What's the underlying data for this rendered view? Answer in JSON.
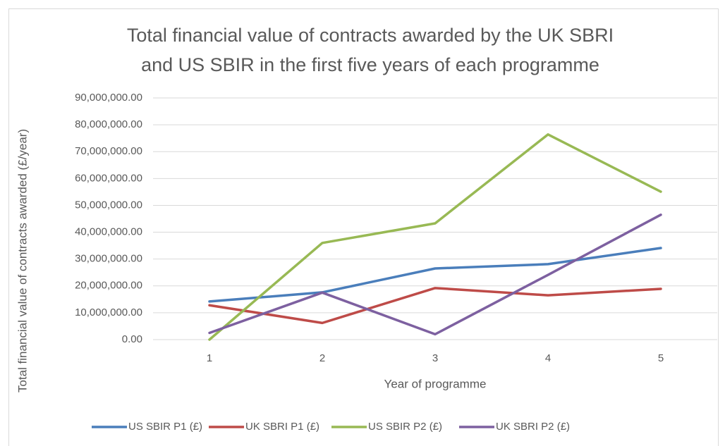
{
  "chart_data": {
    "type": "line",
    "title": [
      "Total financial value of contracts awarded by the UK SBRI",
      "and US SBIR in the first five years of each programme"
    ],
    "x_label": "Year of programme",
    "y_label": "Total financial value of contracts awarded (£/year)",
    "categories": [
      "1",
      "2",
      "3",
      "4",
      "5"
    ],
    "series": [
      {
        "name": "US SBIR P1 (£)",
        "color": "#4a7ebb",
        "values": [
          14200000,
          17600000,
          26500000,
          28100000,
          34100000
        ]
      },
      {
        "name": "UK SBRI P1 (£)",
        "color": "#be4b48",
        "values": [
          12800000,
          6200000,
          19200000,
          16500000,
          18900000
        ]
      },
      {
        "name": "US SBIR P2 (£)",
        "color": "#98b954",
        "values": [
          0,
          36000000,
          43300000,
          76400000,
          55100000
        ]
      },
      {
        "name": "UK SBRI P2 (£)",
        "color": "#7d60a0",
        "values": [
          2500000,
          17500000,
          2000000,
          24100000,
          46500000
        ]
      }
    ],
    "ylim": [
      0,
      90000000
    ],
    "yticks": [
      {
        "value": 0,
        "label": "0.00"
      },
      {
        "value": 10000000,
        "label": "10,000,000.00"
      },
      {
        "value": 20000000,
        "label": "20,000,000.00"
      },
      {
        "value": 30000000,
        "label": "30,000,000.00"
      },
      {
        "value": 40000000,
        "label": "40,000,000.00"
      },
      {
        "value": 50000000,
        "label": "50,000,000.00"
      },
      {
        "value": 60000000,
        "label": "60,000,000.00"
      },
      {
        "value": 70000000,
        "label": "70,000,000.00"
      },
      {
        "value": 80000000,
        "label": "80,000,000.00"
      },
      {
        "value": 90000000,
        "label": "90,000,000.00"
      }
    ],
    "grid": true,
    "legend": "bottom"
  }
}
